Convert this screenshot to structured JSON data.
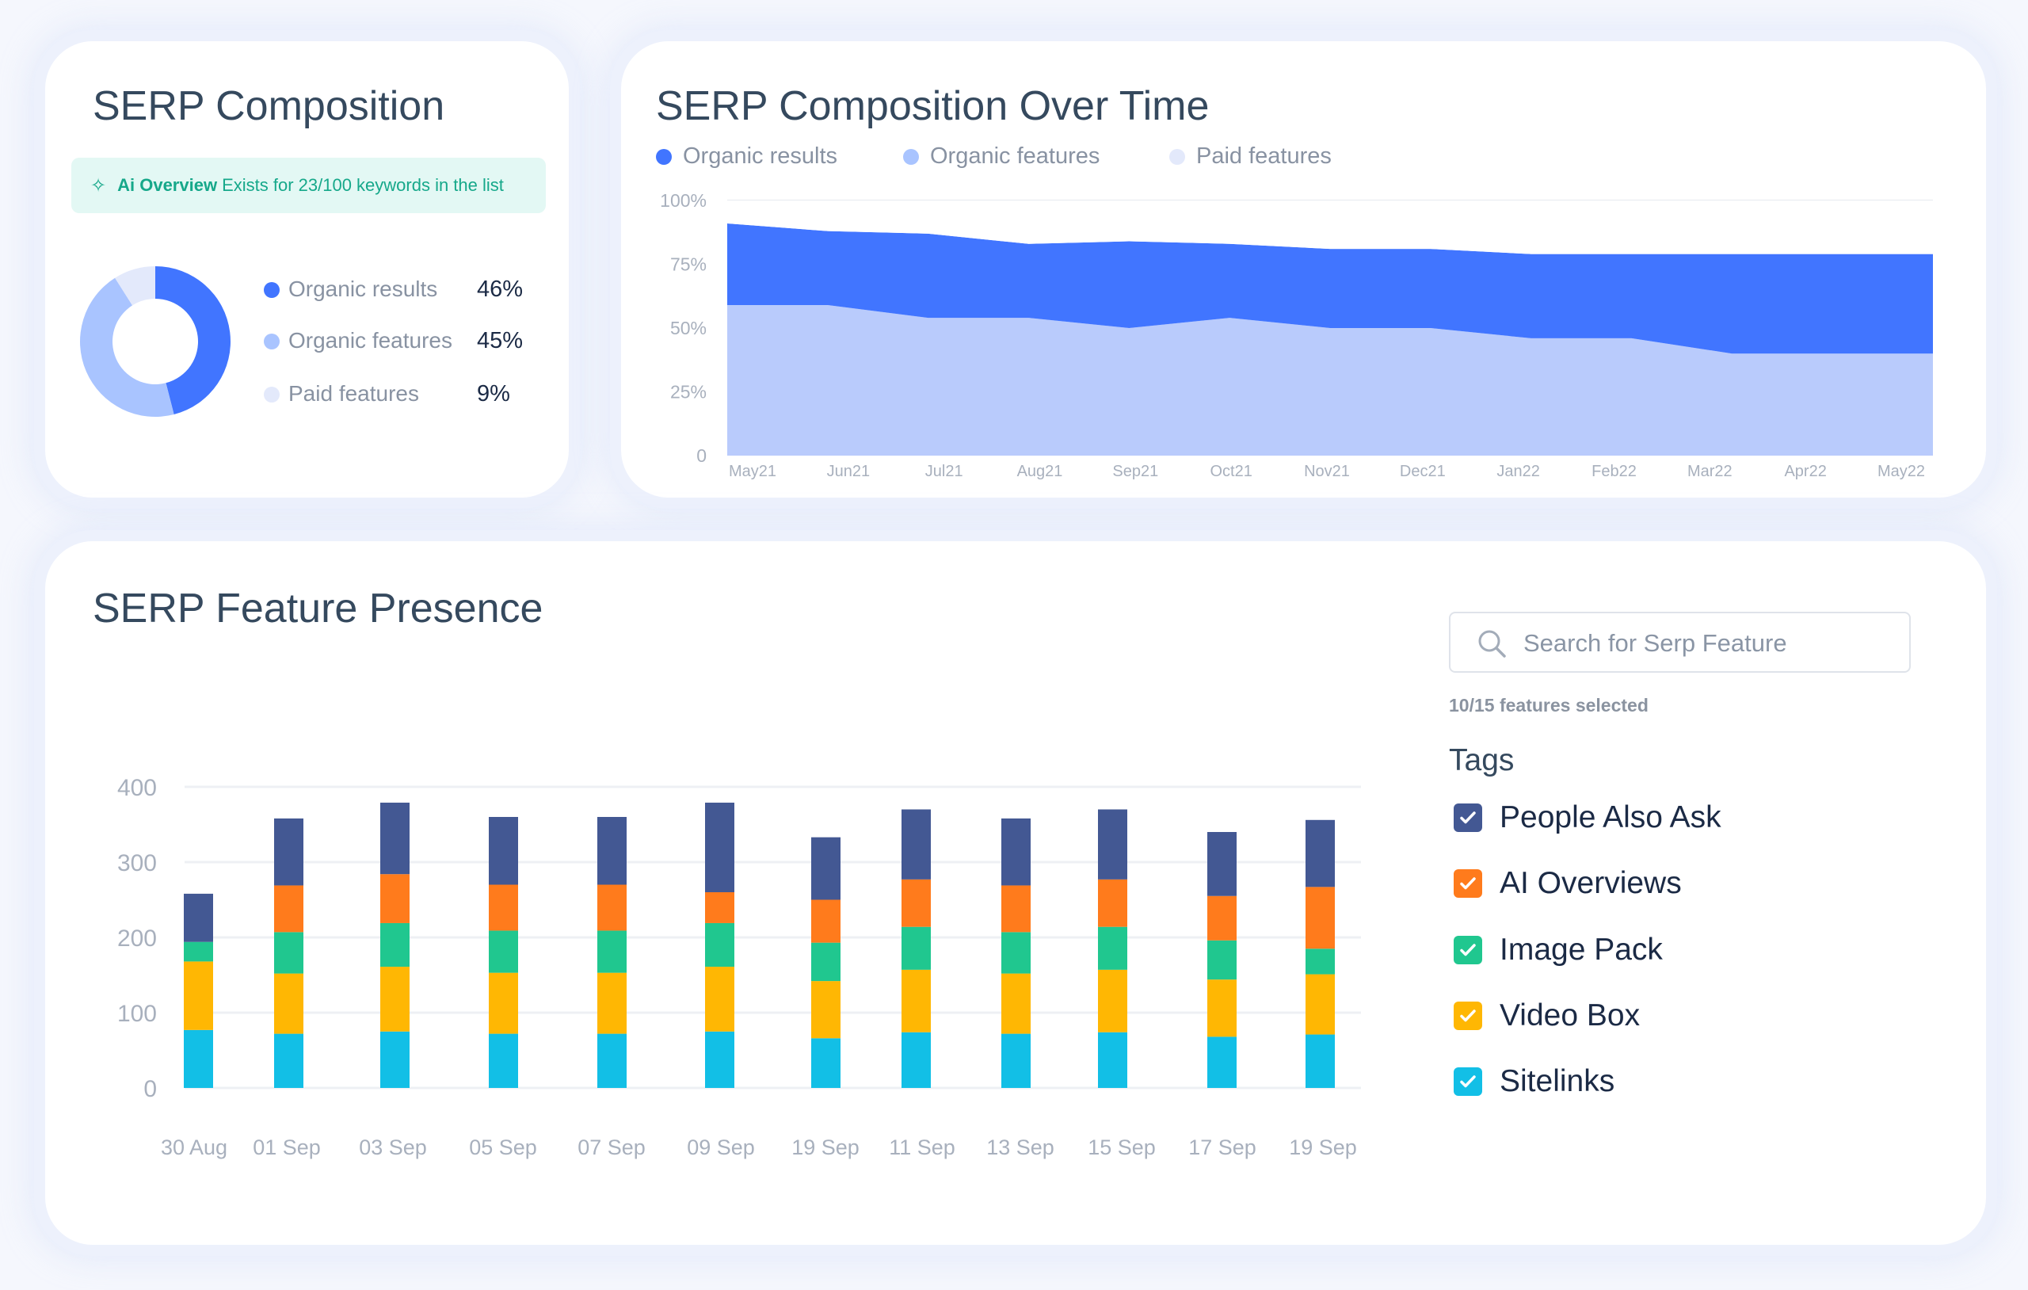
{
  "composition": {
    "title": "SERP Composition",
    "banner": {
      "icon": "sparkle-icon",
      "strong": "Ai Overview",
      "text": "Exists for 23/100 keywords in the list"
    },
    "legend": [
      {
        "label": "Organic results",
        "value": "46%",
        "pct": 46,
        "color": "#4175ff"
      },
      {
        "label": "Organic features",
        "value": "45%",
        "pct": 45,
        "color": "#a9c4ff"
      },
      {
        "label": "Paid features",
        "value": "9%",
        "pct": 9,
        "color": "#e3e9fb"
      }
    ]
  },
  "chart_data": [
    {
      "type": "area",
      "title": "SERP Composition Over Time",
      "stacked": true,
      "categories": [
        "May21",
        "Jun21",
        "Jul21",
        "Aug21",
        "Sep21",
        "Oct21",
        "Nov21",
        "Dec21",
        "Jan22",
        "Feb22",
        "Mar22",
        "Apr22",
        "May22"
      ],
      "yticks": [
        "0",
        "25%",
        "50%",
        "75%",
        "100%"
      ],
      "ylim": [
        0,
        100
      ],
      "legend": [
        {
          "name": "Organic results",
          "color": "#4175ff"
        },
        {
          "name": "Organic features",
          "color": "#a9c4ff"
        },
        {
          "name": "Paid features",
          "color": "#e3e9fb"
        }
      ],
      "series": [
        {
          "name": "Organic features",
          "color": "#b9cbfc",
          "values": [
            59,
            59,
            54,
            54,
            50,
            54,
            50,
            50,
            46,
            46,
            40,
            40,
            40
          ]
        },
        {
          "name": "Organic results",
          "color": "#4175ff",
          "values": [
            32,
            29,
            33,
            29,
            34,
            29,
            31,
            31,
            33,
            33,
            39,
            39,
            39
          ]
        },
        {
          "name": "Paid features",
          "color": "#ffffff",
          "values": [
            9,
            12,
            13,
            17,
            16,
            17,
            19,
            19,
            21,
            21,
            21,
            21,
            21
          ]
        }
      ]
    },
    {
      "type": "bar",
      "stacked": true,
      "title": "SERP Feature Presence",
      "categories": [
        "30 Aug",
        "01 Sep",
        "03 Sep",
        "05 Sep",
        "07 Sep",
        "09 Sep",
        "19 Sep",
        "11 Sep",
        "13 Sep",
        "15 Sep",
        "17 Sep",
        "19 Sep"
      ],
      "yticks": [
        "0",
        "100",
        "200",
        "300",
        "400"
      ],
      "ylim": [
        0,
        400
      ],
      "grid": true,
      "series": [
        {
          "name": "Sitelinks",
          "color": "#12bfe6",
          "values": [
            77,
            72,
            75,
            72,
            72,
            75,
            66,
            74,
            72,
            74,
            68,
            71
          ]
        },
        {
          "name": "Video Box",
          "color": "#ffb703",
          "values": [
            91,
            80,
            86,
            81,
            81,
            86,
            76,
            83,
            80,
            83,
            76,
            80
          ]
        },
        {
          "name": "Image Pack",
          "color": "#20c78f",
          "values": [
            26,
            55,
            58,
            56,
            56,
            58,
            51,
            57,
            55,
            57,
            52,
            34
          ]
        },
        {
          "name": "AI Overviews",
          "color": "#ff7b1c",
          "values": [
            0,
            62,
            65,
            61,
            61,
            41,
            57,
            63,
            62,
            63,
            59,
            82
          ]
        },
        {
          "name": "People Also Ask",
          "color": "#435893",
          "values": [
            64,
            89,
            95,
            90,
            90,
            119,
            83,
            93,
            89,
            93,
            85,
            89
          ]
        }
      ]
    }
  ],
  "feature_panel": {
    "search_placeholder": "Search for Serp Feature",
    "selected_count": "10/15 features selected",
    "tags_heading": "Tags",
    "tags": [
      {
        "label": "People Also Ask",
        "color": "#435893",
        "checked": true
      },
      {
        "label": "AI Overviews",
        "color": "#ff7b1c",
        "checked": true
      },
      {
        "label": "Image Pack",
        "color": "#20c78f",
        "checked": true
      },
      {
        "label": "Video Box",
        "color": "#ffb703",
        "checked": true
      },
      {
        "label": "Sitelinks",
        "color": "#12bfe6",
        "checked": true
      }
    ]
  }
}
